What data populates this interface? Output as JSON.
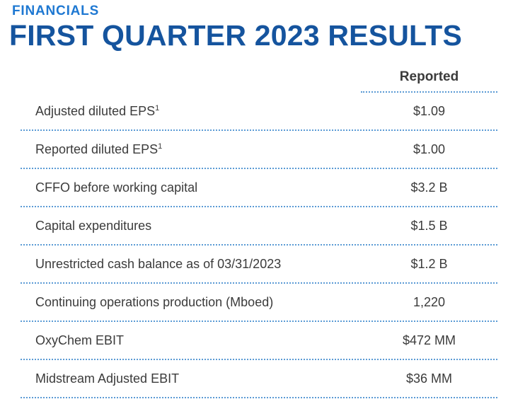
{
  "header": {
    "eyebrow": "FINANCIALS",
    "title": "FIRST QUARTER 2023 RESULTS"
  },
  "table": {
    "column_header": "Reported",
    "rows": [
      {
        "label": "Adjusted diluted EPS",
        "superscript": "1",
        "value": "$1.09"
      },
      {
        "label": "Reported diluted EPS",
        "superscript": "1",
        "value": "$1.00"
      },
      {
        "label": "CFFO before working capital",
        "value": "$3.2 B"
      },
      {
        "label": "Capital expenditures",
        "value": "$1.5 B"
      },
      {
        "label": "Unrestricted cash balance as of 03/31/2023",
        "value": "$1.2 B"
      },
      {
        "label": "Continuing operations production (Mboed)",
        "value": "1,220"
      },
      {
        "label": "OxyChem EBIT",
        "value": "$472 MM"
      },
      {
        "label": "Midstream Adjusted EBIT",
        "value": "$36 MM"
      }
    ]
  },
  "colors": {
    "eyebrow_blue": "#1E78D2",
    "title_blue": "#15549E",
    "body_text": "#3B3B3B",
    "dotted_line_blue": "#5B9BD5"
  }
}
